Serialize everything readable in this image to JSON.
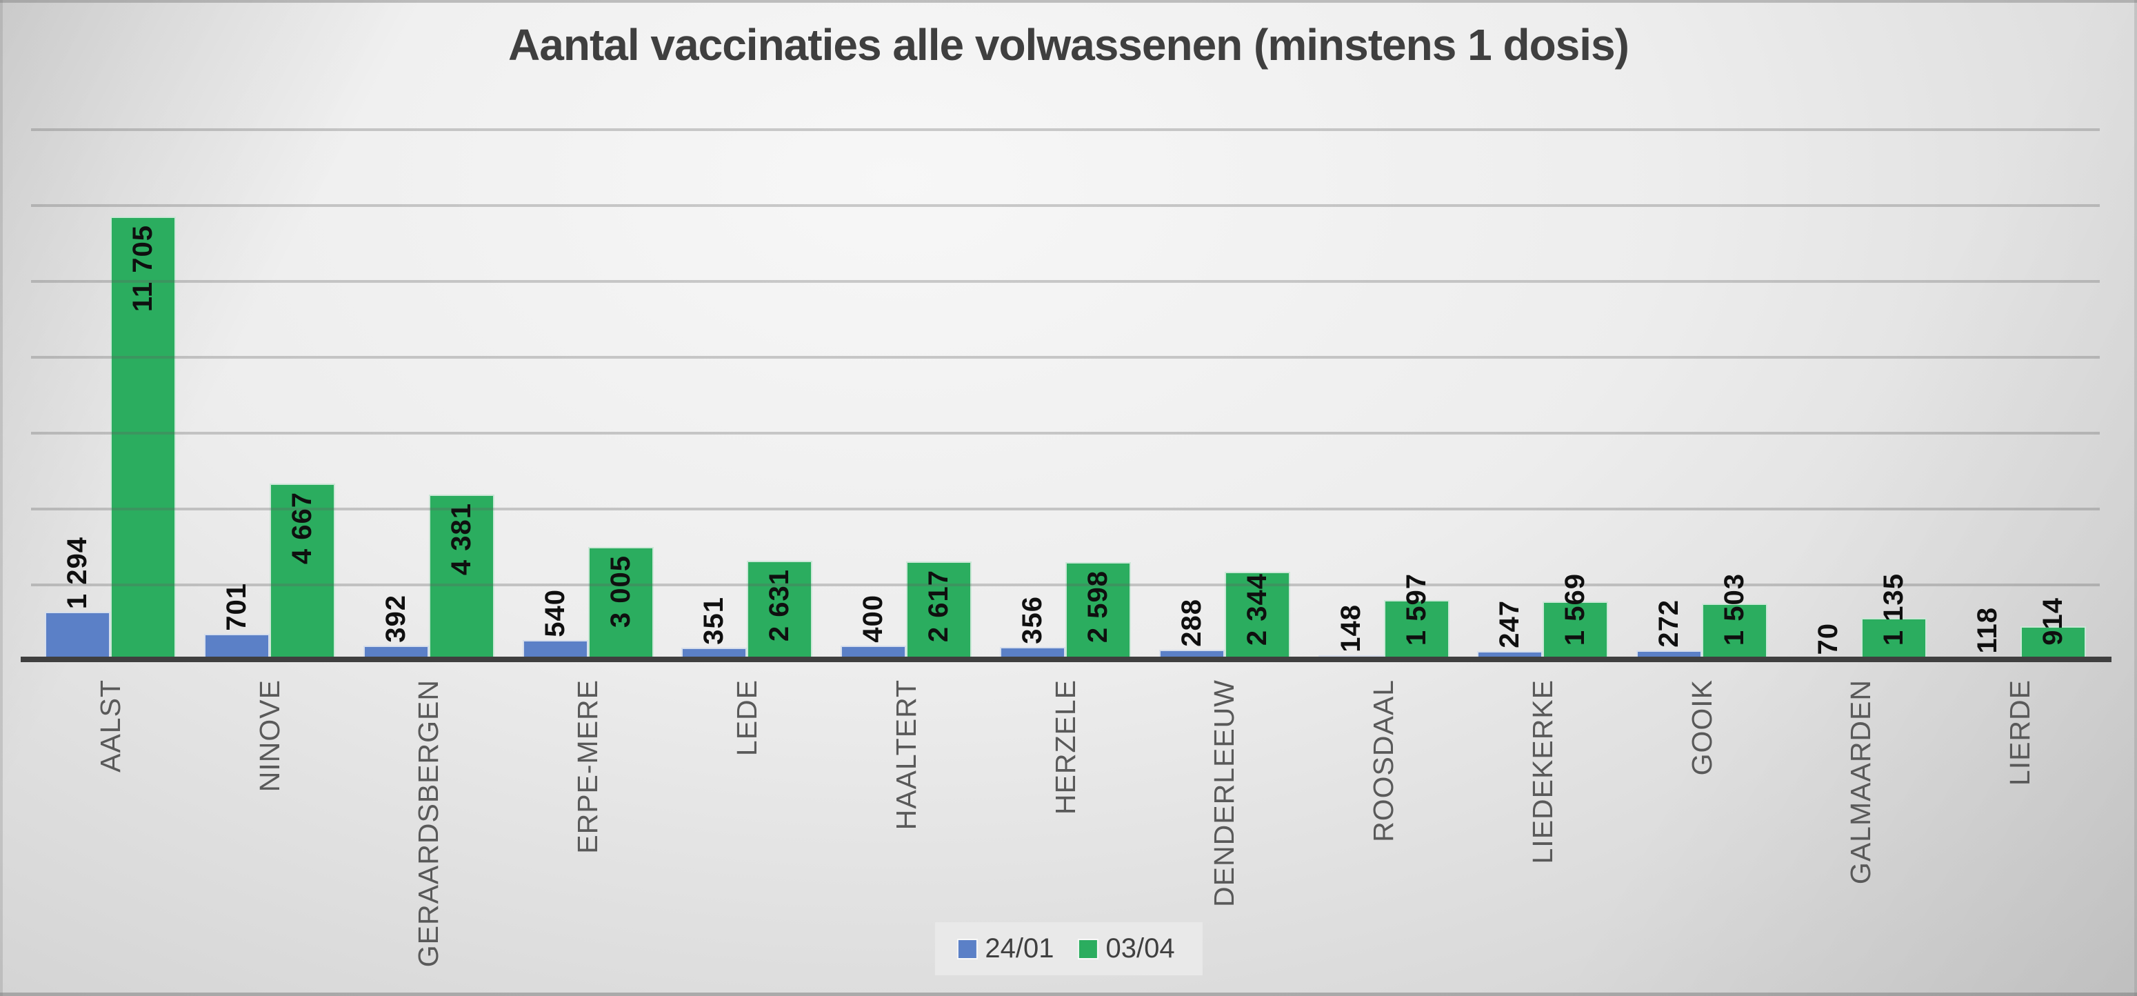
{
  "title": "Aantal vaccinaties alle volwassenen (minstens 1 dosis)",
  "colors": {
    "series_blue": "#5B80C7",
    "series_green": "#2BAD5F",
    "axis_line": "#3F3F3F",
    "grid_line": "#ABABAB",
    "title_text": "#3F3F3F",
    "category_text": "#595959",
    "data_label_text": "#0F0F0F",
    "legend_bg": "#E9E9E9"
  },
  "legend": {
    "position": "bottom",
    "items": [
      {
        "label": "24/01"
      },
      {
        "label": "03/04"
      }
    ]
  },
  "chart_data": {
    "type": "bar",
    "title": "Aantal vaccinaties alle volwassenen (minstens 1 dosis)",
    "categories": [
      "AALST",
      "NINOVE",
      "GERAARDSBERGEN",
      "ERPE-MERE",
      "LEDE",
      "HAALTERT",
      "HERZELE",
      "DENDERLEEUW",
      "ROOSDAAL",
      "LIEDEKERKE",
      "GOOIK",
      "GALMAARDEN",
      "LIERDE"
    ],
    "series": [
      {
        "name": "24/01",
        "color": "#5B80C7",
        "values": [
          1294,
          701,
          392,
          540,
          351,
          400,
          356,
          288,
          148,
          247,
          272,
          70,
          118
        ],
        "data_labels": [
          "1 294",
          "701",
          "392",
          "540",
          "351",
          "400",
          "356",
          "288",
          "148",
          "247",
          "272",
          "70",
          "118"
        ]
      },
      {
        "name": "03/04",
        "color": "#2BAD5F",
        "values": [
          11705,
          4667,
          4381,
          3005,
          2631,
          2617,
          2598,
          2344,
          1597,
          1569,
          1503,
          1135,
          914
        ],
        "data_labels": [
          "11 705",
          "4 667",
          "4 381",
          "3 005",
          "2 631",
          "2 617",
          "2 598",
          "2 344",
          "1 597",
          "1 569",
          "1 503",
          "1 135",
          "914"
        ]
      }
    ],
    "xlabel": "",
    "ylabel": "",
    "ylim": [
      0,
      14000
    ],
    "y_major_unit": 2000,
    "y_axis_labels_visible": false,
    "grid": "horizontal",
    "legend_position": "bottom",
    "data_label_rotation": -90,
    "category_label_rotation": -90
  }
}
